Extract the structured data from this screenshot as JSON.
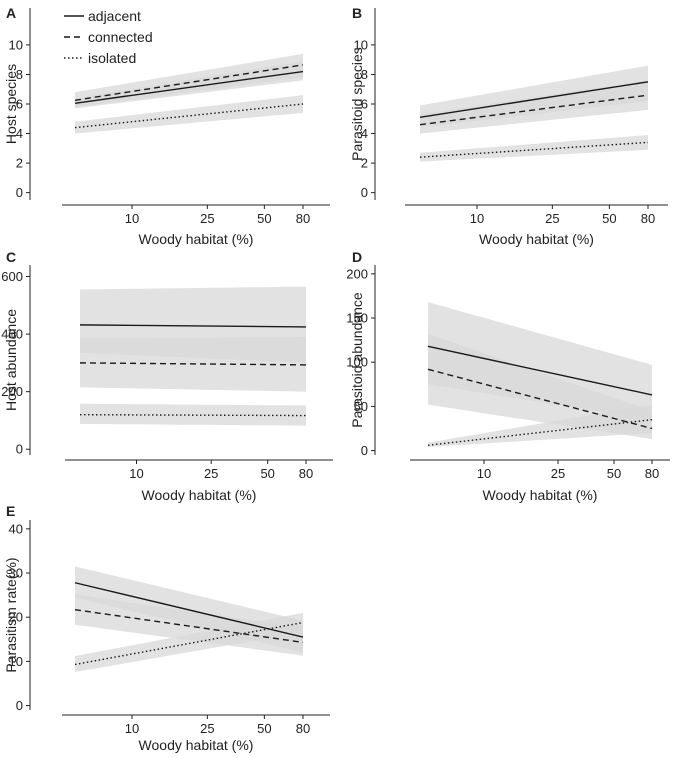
{
  "chart_data": [
    {
      "panel": "A",
      "type": "line",
      "xlabel": "Woody habitat (%)",
      "ylabel": "Host species",
      "x_ticks": [
        "10",
        "25",
        "50",
        "80"
      ],
      "x_domain": [
        5,
        80
      ],
      "y_ticks": [
        0,
        2,
        4,
        6,
        8,
        10
      ],
      "ylim": [
        -0.5,
        12.5
      ],
      "series": [
        {
          "name": "adjacent",
          "style": "solid",
          "x": [
            5,
            80
          ],
          "y": [
            6.05,
            8.2
          ],
          "lower": [
            5.7,
            7.6
          ],
          "upper": [
            6.4,
            8.9
          ]
        },
        {
          "name": "connected",
          "style": "dashed",
          "x": [
            5,
            80
          ],
          "y": [
            6.25,
            8.65
          ],
          "lower": [
            5.8,
            7.8
          ],
          "upper": [
            6.8,
            9.4
          ]
        },
        {
          "name": "isolated",
          "style": "dotted",
          "x": [
            5,
            80
          ],
          "y": [
            4.4,
            6.0
          ],
          "lower": [
            4.0,
            5.4
          ],
          "upper": [
            4.8,
            6.6
          ]
        }
      ]
    },
    {
      "panel": "B",
      "type": "line",
      "xlabel": "Woody habitat (%)",
      "ylabel": "Parasitoid species",
      "x_ticks": [
        "10",
        "25",
        "50",
        "80"
      ],
      "x_domain": [
        5,
        80
      ],
      "y_ticks": [
        0,
        2,
        4,
        6,
        8,
        10
      ],
      "ylim": [
        -0.5,
        12.5
      ],
      "series": [
        {
          "name": "adjacent",
          "style": "solid",
          "x": [
            5,
            80
          ],
          "y": [
            5.1,
            7.5
          ],
          "lower": [
            4.4,
            6.2
          ],
          "upper": [
            5.9,
            8.6
          ]
        },
        {
          "name": "connected",
          "style": "dashed",
          "x": [
            5,
            80
          ],
          "y": [
            4.6,
            6.6
          ],
          "lower": [
            4.0,
            5.6
          ],
          "upper": [
            5.3,
            7.6
          ]
        },
        {
          "name": "isolated",
          "style": "dotted",
          "x": [
            5,
            80
          ],
          "y": [
            2.4,
            3.4
          ],
          "lower": [
            2.1,
            2.9
          ],
          "upper": [
            2.7,
            3.9
          ]
        }
      ]
    },
    {
      "panel": "C",
      "type": "line",
      "xlabel": "Woody habitat (%)",
      "ylabel": "Host abundance",
      "x_ticks": [
        "10",
        "25",
        "50",
        "80"
      ],
      "x_domain": [
        5,
        80
      ],
      "y_ticks": [
        0,
        200,
        400,
        600
      ],
      "ylim": [
        -20,
        640
      ],
      "series": [
        {
          "name": "adjacent",
          "style": "solid",
          "x": [
            5,
            80
          ],
          "y": [
            432,
            425
          ],
          "lower": [
            335,
            300
          ],
          "upper": [
            555,
            565
          ]
        },
        {
          "name": "connected",
          "style": "dashed",
          "x": [
            5,
            80
          ],
          "y": [
            300,
            293
          ],
          "lower": [
            215,
            200
          ],
          "upper": [
            385,
            390
          ]
        },
        {
          "name": "isolated",
          "style": "dotted",
          "x": [
            5,
            80
          ],
          "y": [
            120,
            117
          ],
          "lower": [
            88,
            82
          ],
          "upper": [
            158,
            152
          ]
        }
      ]
    },
    {
      "panel": "D",
      "type": "line",
      "xlabel": "Woody habitat (%)",
      "ylabel": "Parasitoid abundance",
      "x_ticks": [
        "10",
        "25",
        "50",
        "80"
      ],
      "x_domain": [
        5,
        80
      ],
      "y_ticks": [
        0,
        50,
        100,
        150,
        200
      ],
      "ylim": [
        -5,
        210
      ],
      "series": [
        {
          "name": "adjacent",
          "style": "solid",
          "x": [
            5,
            80
          ],
          "y": [
            118,
            63
          ],
          "lower": [
            75,
            35
          ],
          "upper": [
            168,
            97
          ]
        },
        {
          "name": "connected",
          "style": "dashed",
          "x": [
            5,
            80
          ],
          "y": [
            92,
            25
          ],
          "lower": [
            52,
            13
          ],
          "upper": [
            132,
            45
          ]
        },
        {
          "name": "isolated",
          "style": "dotted",
          "x": [
            5,
            80
          ],
          "y": [
            6,
            35
          ],
          "lower": [
            4,
            20
          ],
          "upper": [
            9,
            52
          ]
        }
      ]
    },
    {
      "panel": "E",
      "type": "line",
      "xlabel": "Woody habitat (%)",
      "ylabel": "Parasitism rate(%)",
      "x_ticks": [
        "10",
        "25",
        "50",
        "80"
      ],
      "x_domain": [
        5,
        80
      ],
      "y_ticks": [
        0,
        10,
        20,
        30,
        40
      ],
      "ylim": [
        -1,
        42
      ],
      "series": [
        {
          "name": "adjacent",
          "style": "solid",
          "x": [
            5,
            80
          ],
          "y": [
            27.8,
            15.5
          ],
          "lower": [
            24.5,
            12.0
          ],
          "upper": [
            31.5,
            19.2
          ]
        },
        {
          "name": "connected",
          "style": "dashed",
          "x": [
            5,
            80
          ],
          "y": [
            21.7,
            14.3
          ],
          "lower": [
            18.3,
            11.3
          ],
          "upper": [
            25.2,
            17.6
          ]
        },
        {
          "name": "isolated",
          "style": "dotted",
          "x": [
            5,
            80
          ],
          "y": [
            9.3,
            18.8
          ],
          "lower": [
            7.6,
            16.6
          ],
          "upper": [
            11.2,
            21.0
          ]
        }
      ]
    }
  ],
  "legend": {
    "adjacent": "adjacent",
    "connected": "connected",
    "isolated": "isolated"
  },
  "colors": {
    "band": "#d8d8d8",
    "line": "#1a1a1a",
    "axis": "#222222"
  }
}
